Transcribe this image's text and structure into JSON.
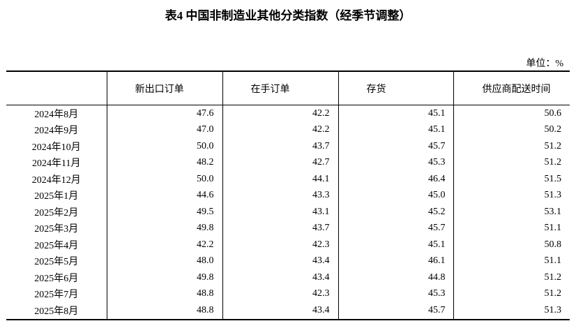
{
  "title": "表4 中国非制造业其他分类指数（经季节调整）",
  "unit": "单位：%",
  "table": {
    "headers": [
      "",
      "新出口订单",
      "在手订单",
      "存货",
      "供应商配送时间"
    ],
    "rows": [
      [
        "2024年8月",
        "47.6",
        "42.2",
        "45.1",
        "50.6"
      ],
      [
        "2024年9月",
        "47.0",
        "42.2",
        "45.1",
        "50.2"
      ],
      [
        "2024年10月",
        "50.0",
        "43.7",
        "45.7",
        "51.2"
      ],
      [
        "2024年11月",
        "48.2",
        "42.7",
        "45.3",
        "51.2"
      ],
      [
        "2024年12月",
        "50.0",
        "44.1",
        "46.4",
        "51.5"
      ],
      [
        "2025年1月",
        "44.6",
        "43.3",
        "45.0",
        "51.3"
      ],
      [
        "2025年2月",
        "49.5",
        "43.1",
        "45.2",
        "53.1"
      ],
      [
        "2025年3月",
        "49.8",
        "43.7",
        "45.7",
        "51.1"
      ],
      [
        "2025年4月",
        "42.2",
        "42.3",
        "45.1",
        "50.8"
      ],
      [
        "2025年5月",
        "48.0",
        "43.4",
        "46.1",
        "51.1"
      ],
      [
        "2025年6月",
        "49.8",
        "43.4",
        "44.8",
        "51.2"
      ],
      [
        "2025年7月",
        "48.8",
        "42.3",
        "45.3",
        "51.2"
      ],
      [
        "2025年8月",
        "48.8",
        "43.4",
        "45.7",
        "51.3"
      ]
    ]
  }
}
